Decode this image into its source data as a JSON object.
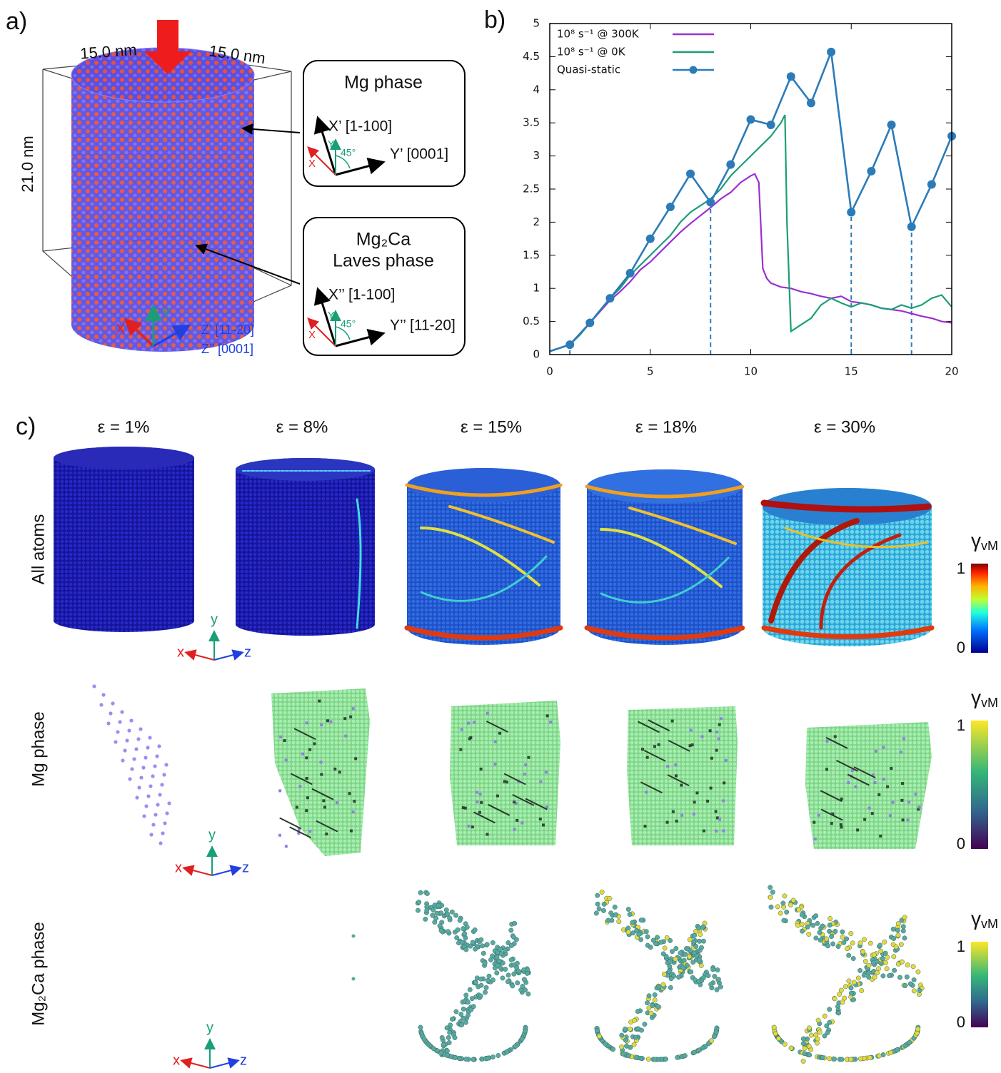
{
  "panel_a": {
    "label": "a)",
    "width_x": "15.0 nm",
    "width_z": "15.0 nm",
    "height": "21.0 nm",
    "mg_box": {
      "title": "Mg phase",
      "x_axis": "X’ [1-100]",
      "y_axis": "Y’ [0001]",
      "x": "X",
      "y": "Y",
      "angle": "45°"
    },
    "laves_box": {
      "title": "Mg₂Ca",
      "subtitle": "Laves phase",
      "x_axis": "X’’ [1-100]",
      "y_axis": "Y’’ [11-20]",
      "x": "X",
      "y": "Y",
      "angle": "45°"
    },
    "axes": {
      "x": "X",
      "y": "Y",
      "z1": "Z’ [11-20]",
      "z2": "Z’’ [0001]"
    }
  },
  "chart_data": {
    "type": "line",
    "label": "b)",
    "xlim": [
      0,
      20
    ],
    "ylim": [
      0,
      5
    ],
    "xticks": [
      0,
      5,
      10,
      15,
      20
    ],
    "yticks": [
      0,
      0.5,
      1,
      1.5,
      2,
      2.5,
      3,
      3.5,
      4,
      4.5,
      5
    ],
    "vlines": [
      1,
      8,
      15,
      18
    ],
    "vline_color": "#2b7bb9",
    "legend": "top-left",
    "series": [
      {
        "name": "10⁸ s⁻¹ @ 300K",
        "color": "#9b30d0",
        "marker": "none",
        "x": [
          0,
          0.5,
          1,
          1.5,
          2,
          2.5,
          3,
          3.5,
          4,
          4.5,
          5,
          5.5,
          6,
          6.5,
          7,
          7.5,
          8,
          8.5,
          9,
          9.5,
          10,
          10.2,
          10.4,
          10.6,
          10.8,
          11,
          11.5,
          12,
          12.5,
          13,
          13.5,
          14,
          14.5,
          15,
          15.5,
          16,
          16.5,
          17,
          17.5,
          18,
          18.5,
          19,
          19.5,
          20
        ],
        "values": [
          0.05,
          0.1,
          0.15,
          0.3,
          0.48,
          0.65,
          0.82,
          0.95,
          1.1,
          1.28,
          1.4,
          1.55,
          1.7,
          1.85,
          1.98,
          2.1,
          2.22,
          2.35,
          2.45,
          2.6,
          2.7,
          2.73,
          2.6,
          1.3,
          1.15,
          1.08,
          1.02,
          1.0,
          0.95,
          0.92,
          0.88,
          0.85,
          0.88,
          0.8,
          0.78,
          0.75,
          0.7,
          0.68,
          0.66,
          0.62,
          0.58,
          0.55,
          0.5,
          0.48
        ]
      },
      {
        "name": "10⁸ s⁻¹ @ 0K",
        "color": "#1a9e77",
        "marker": "none",
        "x": [
          0,
          0.5,
          1,
          1.5,
          2,
          2.5,
          3,
          3.5,
          4,
          4.5,
          5,
          5.5,
          6,
          6.5,
          7,
          7.5,
          8,
          8.5,
          9,
          9.5,
          10,
          10.5,
          11,
          11.5,
          11.7,
          11.8,
          12,
          12.5,
          13,
          13.5,
          14,
          14.5,
          15,
          15.5,
          16,
          16.5,
          17,
          17.5,
          18,
          18.5,
          19,
          19.5,
          20
        ],
        "values": [
          0.05,
          0.1,
          0.15,
          0.3,
          0.48,
          0.67,
          0.85,
          1.0,
          1.2,
          1.35,
          1.5,
          1.65,
          1.8,
          2.0,
          2.15,
          2.25,
          2.35,
          2.5,
          2.7,
          2.85,
          3.0,
          3.15,
          3.3,
          3.5,
          3.62,
          2.0,
          0.35,
          0.45,
          0.55,
          0.75,
          0.85,
          0.78,
          0.72,
          0.78,
          0.75,
          0.7,
          0.68,
          0.75,
          0.7,
          0.75,
          0.85,
          0.9,
          0.72
        ]
      },
      {
        "name": "Quasi-static",
        "color": "#2b7bb9",
        "marker": "circle",
        "x": [
          0,
          1,
          2,
          3,
          4,
          5,
          6,
          7,
          8,
          9,
          10,
          11,
          12,
          13,
          14,
          15,
          16,
          17,
          18,
          19,
          20
        ],
        "values": [
          0.05,
          0.15,
          0.48,
          0.85,
          1.23,
          1.75,
          2.23,
          2.73,
          2.3,
          2.87,
          3.55,
          3.47,
          4.2,
          3.8,
          4.57,
          2.15,
          2.77,
          3.47,
          1.93,
          2.57,
          3.3
        ]
      }
    ]
  },
  "panel_c": {
    "label": "c)",
    "columns": [
      "ε = 1%",
      "ε = 8%",
      "ε = 15%",
      "ε = 18%",
      "ε = 30%"
    ],
    "rows": [
      "All atoms",
      "Mg phase",
      "Mg₂Ca phase"
    ],
    "colorbars": [
      {
        "symbol": "γ",
        "subscript": "vM",
        "max": "1",
        "min": "0"
      },
      {
        "symbol": "γ",
        "subscript": "vM",
        "max": "1",
        "min": "0"
      },
      {
        "symbol": "γ",
        "subscript": "vM",
        "max": "1",
        "min": "0"
      }
    ],
    "triad": {
      "x": "x",
      "y": "y",
      "z": "z"
    }
  }
}
